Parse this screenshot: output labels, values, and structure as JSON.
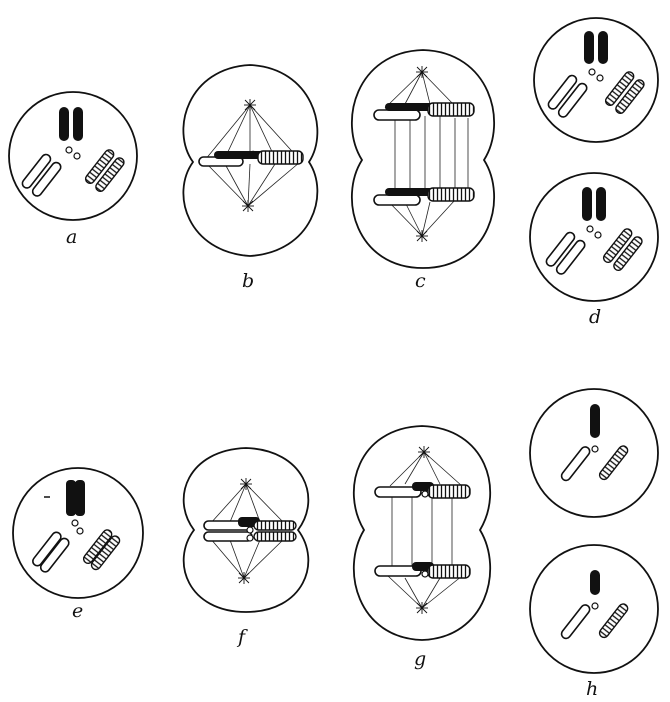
{
  "figure": {
    "panels": [
      {
        "id": "a",
        "label": "a",
        "stage": "cell-with-paired-chromosomes"
      },
      {
        "id": "b",
        "label": "b",
        "stage": "metaphase-spindle"
      },
      {
        "id": "c",
        "label": "c",
        "stage": "anaphase-dividing-cell"
      },
      {
        "id": "d",
        "label": "d",
        "stage": "two-daughter-cells-diploid"
      },
      {
        "id": "e",
        "label": "e",
        "stage": "cell-with-paired-chromosomes"
      },
      {
        "id": "f",
        "label": "f",
        "stage": "meiotic-metaphase-spindle"
      },
      {
        "id": "g",
        "label": "g",
        "stage": "meiotic-anaphase-dividing-cell"
      },
      {
        "id": "h",
        "label": "h",
        "stage": "two-daughter-cells-haploid"
      }
    ],
    "colors": {
      "line": "#111111",
      "background": "#ffffff"
    }
  }
}
